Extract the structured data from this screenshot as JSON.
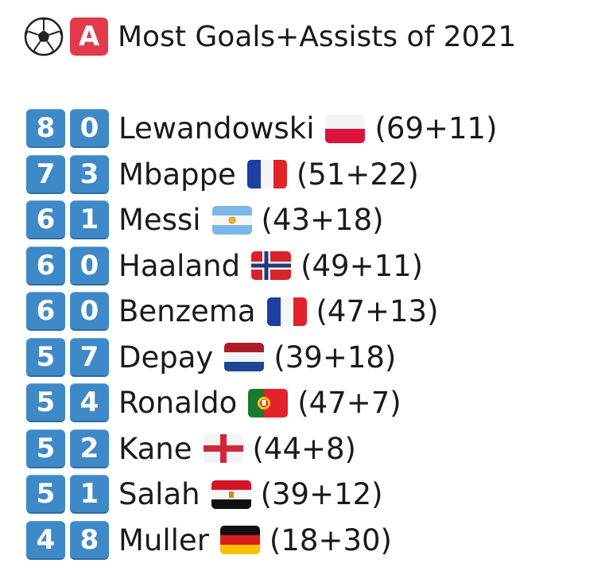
{
  "header": {
    "ball_icon": "soccer-ball-icon",
    "badge_letter": "A",
    "badge_color": "#e23a4c",
    "title": "Most Goals+Assists of 2021"
  },
  "accent_color": "#3e89c8",
  "players": [
    {
      "d1": "8",
      "d2": "0",
      "name": "Lewandowski",
      "flag": "poland",
      "stats": "(69+11)"
    },
    {
      "d1": "7",
      "d2": "3",
      "name": "Mbappe",
      "flag": "france",
      "stats": "(51+22)"
    },
    {
      "d1": "6",
      "d2": "1",
      "name": "Messi",
      "flag": "argentina",
      "stats": "(43+18)"
    },
    {
      "d1": "6",
      "d2": "0",
      "name": "Haaland",
      "flag": "norway",
      "stats": "(49+11)"
    },
    {
      "d1": "6",
      "d2": "0",
      "name": "Benzema",
      "flag": "france",
      "stats": "(47+13)"
    },
    {
      "d1": "5",
      "d2": "7",
      "name": "Depay",
      "flag": "netherlands",
      "stats": "(39+18)"
    },
    {
      "d1": "5",
      "d2": "4",
      "name": "Ronaldo",
      "flag": "portugal",
      "stats": "(47+7)"
    },
    {
      "d1": "5",
      "d2": "2",
      "name": "Kane",
      "flag": "england",
      "stats": "(44+8)"
    },
    {
      "d1": "5",
      "d2": "1",
      "name": "Salah",
      "flag": "egypt",
      "stats": "(39+12)"
    },
    {
      "d1": "4",
      "d2": "8",
      "name": "Muller",
      "flag": "germany",
      "stats": "(18+30)"
    }
  ]
}
